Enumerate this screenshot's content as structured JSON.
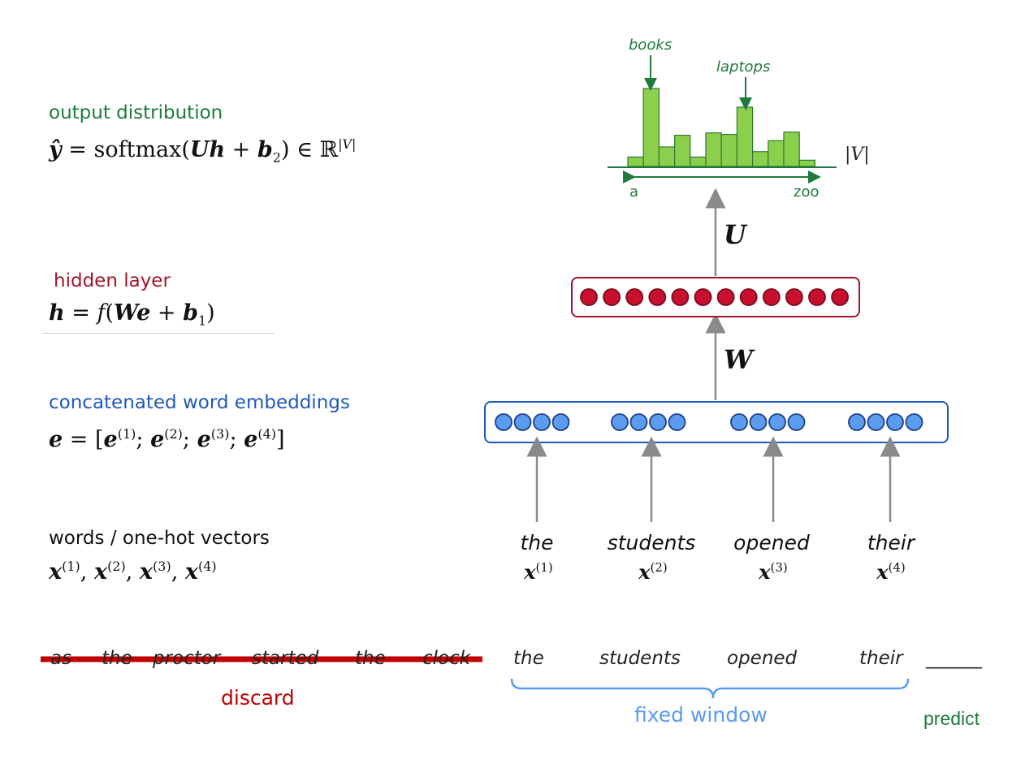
{
  "left_labels": {
    "output": {
      "title": "output distribution"
    },
    "hidden": {
      "title": "hidden layer"
    },
    "embeddings": {
      "title": "concatenated word embeddings"
    },
    "words": {
      "title": "words / one-hot vectors"
    }
  },
  "histogram": {
    "annotation_left": "books",
    "annotation_right": "laptops",
    "axis_start": "a",
    "axis_end": "zoo",
    "vocab_label": "|V|",
    "bar_heights": [
      0.12,
      1.0,
      0.25,
      0.4,
      0.12,
      0.43,
      0.41,
      0.76,
      0.19,
      0.33,
      0.44,
      0.08
    ],
    "color": "#8ccf4d"
  },
  "weights": {
    "U": "U",
    "W": "W"
  },
  "hidden_units": 12,
  "embedding_groups": 4,
  "units_per_group": 4,
  "window_words": [
    {
      "word": "the",
      "vec": "x",
      "index": "(1)"
    },
    {
      "word": "students",
      "vec": "x",
      "index": "(2)"
    },
    {
      "word": "opened",
      "vec": "x",
      "index": "(3)"
    },
    {
      "word": "their",
      "vec": "x",
      "index": "(4)"
    }
  ],
  "context": {
    "discarded": [
      "as",
      "the",
      "proctor",
      "started",
      "the",
      "clock"
    ],
    "window": [
      "the",
      "students",
      "opened",
      "their"
    ],
    "blank": "______",
    "discard_label": "discard",
    "window_label": "fixed window",
    "predict_label": "predict"
  },
  "colors": {
    "output": "#1e7a3c",
    "hidden": "#a3152c",
    "embed": "#1f59b8",
    "strike": "#c00000",
    "brace": "#5b9bf0"
  }
}
